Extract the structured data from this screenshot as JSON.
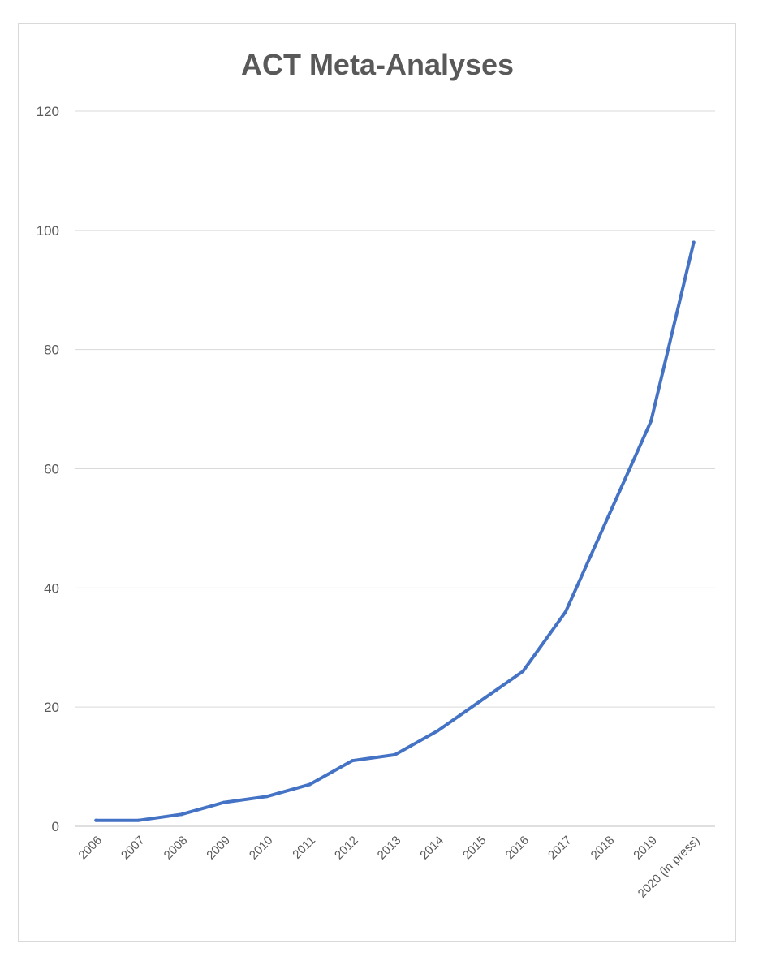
{
  "chart_data": {
    "type": "line",
    "title": "ACT Meta-Analyses",
    "xlabel": "",
    "ylabel": "",
    "categories": [
      "2006",
      "2007",
      "2008",
      "2009",
      "2010",
      "2011",
      "2012",
      "2013",
      "2014",
      "2015",
      "2016",
      "2017",
      "2018",
      "2019",
      "2020 (in press)"
    ],
    "series": [
      {
        "color": "#4472c4",
        "values": [
          1,
          1,
          2,
          4,
          5,
          7,
          11,
          12,
          16,
          21,
          26,
          36,
          52,
          68,
          98
        ]
      }
    ],
    "ylim": [
      0,
      120
    ],
    "yticks": [
      0,
      20,
      40,
      60,
      80,
      100,
      120
    ],
    "grid": true,
    "legend": "none"
  }
}
